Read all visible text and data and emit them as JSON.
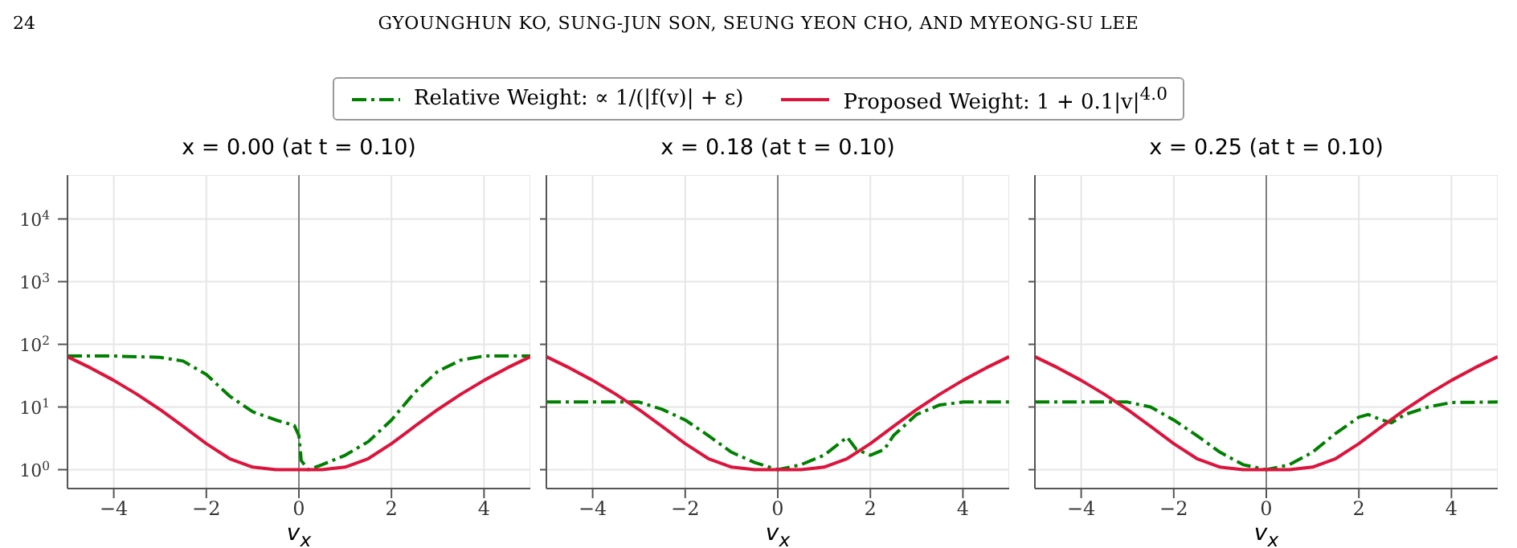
{
  "chart_data": [
    {
      "type": "line",
      "title": "x = 0.00 (at t = 0.10)",
      "xlabel": "v$_{x}$",
      "annotations": [
        "24",
        "GYOUNGHUN KO, SUNG-JUN SON, SEUNG YEON CHO, AND MYEONG-SU LEE"
      ],
      "legend": "top",
      "grid": true,
      "log": "y",
      "line_style": "solid",
      "xlim": [
        -5,
        5
      ],
      "xticks": [
        -4,
        -2,
        0,
        2,
        4
      ],
      "ylim": [
        0.5,
        50000
      ],
      "yticks": [
        {
          "value": 1,
          "label": "10$^{0}$"
        },
        {
          "value": 10,
          "label": "10$^{1}$"
        },
        {
          "value": 100,
          "label": "10$^{2}$"
        },
        {
          "value": 1000,
          "label": "10$^{3}$"
        },
        {
          "value": 10000,
          "label": "10$^{4}$"
        }
      ],
      "ref_lines": [
        {
          "axis": "x",
          "value": 0,
          "color": "#808080"
        }
      ],
      "series": [
        {
          "name": "Relative Weight: ∝ 1/(|f(v)| + ε)",
          "color": "#008000",
          "line_style": "dashed",
          "x": [
            -5,
            -4,
            -3,
            -2.5,
            -2,
            -1.5,
            -1,
            -0.5,
            -0.1,
            0,
            0.05,
            0.2,
            0.5,
            1,
            1.5,
            2,
            2.5,
            3,
            3.5,
            4,
            5
          ],
          "values": [
            65,
            65,
            62,
            54,
            33,
            15,
            8.4,
            6.2,
            5.1,
            3.5,
            1.4,
            1.0,
            1.2,
            1.7,
            2.8,
            6.2,
            17,
            37,
            56,
            65,
            65
          ]
        },
        {
          "name": "Proposed Weight: 1 + 0.1|v|$^{4.0}$",
          "color": "#dc143c",
          "x": [
            -5,
            -4.5,
            -4,
            -3.5,
            -3,
            -2.5,
            -2,
            -1.5,
            -1,
            -0.5,
            0,
            0.5,
            1,
            1.5,
            2,
            2.5,
            3,
            3.5,
            4,
            4.5,
            5
          ],
          "values": [
            63.5,
            42,
            26.6,
            16,
            9.1,
            4.9,
            2.6,
            1.5,
            1.1,
            1.0,
            1.0,
            1.0,
            1.1,
            1.5,
            2.6,
            4.9,
            9.1,
            16,
            26.6,
            42,
            63.5
          ]
        }
      ]
    },
    {
      "type": "line",
      "title": "x = 0.18 (at t = 0.10)",
      "xlabel": "v$_{x}$",
      "grid": true,
      "log": "y",
      "tick_labels": "x",
      "line_style": "solid",
      "xlim": [
        -5,
        5
      ],
      "xticks": [
        -4,
        -2,
        0,
        2,
        4
      ],
      "ylim": [
        0.5,
        50000
      ],
      "yticks": [
        1,
        10,
        100,
        1000,
        10000
      ],
      "ref_lines": [
        {
          "axis": "x",
          "value": 0,
          "color": "#808080"
        }
      ],
      "series": [
        {
          "color": "#008000",
          "line_style": "dashed",
          "x": [
            -5,
            -3,
            -2.5,
            -2,
            -1.5,
            -1,
            -0.5,
            0,
            0.5,
            1,
            1.5,
            1.7,
            2,
            2.3,
            2.5,
            3,
            3.5,
            4,
            5
          ],
          "values": [
            12,
            12,
            9.2,
            6.2,
            3.5,
            1.9,
            1.3,
            1.0,
            1.2,
            1.7,
            3.3,
            2.1,
            1.7,
            2.1,
            3.5,
            7.6,
            10.8,
            12,
            12
          ]
        },
        {
          "color": "#dc143c",
          "x": [
            -5,
            -4.5,
            -4,
            -3.5,
            -3,
            -2.5,
            -2,
            -1.5,
            -1,
            -0.5,
            0,
            0.5,
            1,
            1.5,
            2,
            2.5,
            3,
            3.5,
            4,
            4.5,
            5
          ],
          "values": [
            63.5,
            42,
            26.6,
            16,
            9.1,
            4.9,
            2.6,
            1.5,
            1.1,
            1.0,
            1.0,
            1.0,
            1.1,
            1.5,
            2.6,
            4.9,
            9.1,
            16,
            26.6,
            42,
            63.5
          ]
        }
      ]
    },
    {
      "type": "line",
      "title": "x = 0.25 (at t = 0.10)",
      "xlabel": "v$_{x}$",
      "grid": true,
      "log": "y",
      "tick_labels": "x",
      "line_style": "solid",
      "xlim": [
        -5,
        5
      ],
      "xticks": [
        -4,
        -2,
        0,
        2,
        4
      ],
      "ylim": [
        0.5,
        50000
      ],
      "yticks": [
        1,
        10,
        100,
        1000,
        10000
      ],
      "ref_lines": [
        {
          "axis": "x",
          "value": 0,
          "color": "#808080"
        }
      ],
      "series": [
        {
          "color": "#008000",
          "line_style": "dashed",
          "x": [
            -5,
            -3,
            -2.5,
            -2,
            -1.5,
            -1,
            -0.5,
            0,
            0.5,
            1,
            1.5,
            2,
            2.2,
            2.5,
            2.7,
            3,
            3.5,
            4,
            5
          ],
          "values": [
            12,
            12,
            10,
            6.2,
            3.5,
            1.9,
            1.2,
            1.0,
            1.2,
            1.9,
            3.8,
            6.9,
            7.6,
            6.2,
            5.6,
            7.6,
            10,
            11.8,
            12
          ]
        },
        {
          "color": "#dc143c",
          "x": [
            -5,
            -4.5,
            -4,
            -3.5,
            -3,
            -2.5,
            -2,
            -1.5,
            -1,
            -0.5,
            0,
            0.5,
            1,
            1.5,
            2,
            2.5,
            3,
            3.5,
            4,
            4.5,
            5
          ],
          "values": [
            63.5,
            42,
            26.6,
            16,
            9.1,
            4.9,
            2.6,
            1.5,
            1.1,
            1.0,
            1.0,
            1.0,
            1.1,
            1.5,
            2.6,
            4.9,
            9.1,
            16,
            26.6,
            42,
            63.5
          ]
        }
      ]
    }
  ]
}
